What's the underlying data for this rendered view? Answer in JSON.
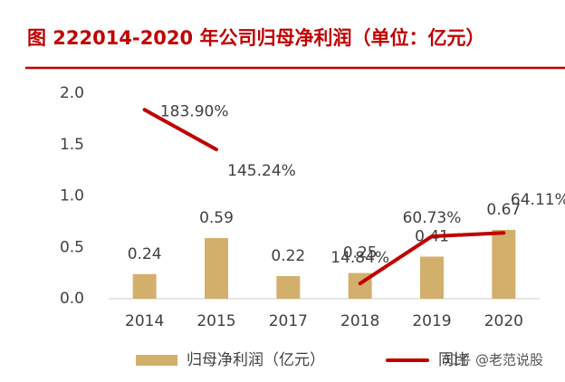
{
  "chart_data": {
    "type": "bar-line",
    "title": "图 222014-2020 年公司归母净利润（单位：亿元）",
    "categories": [
      "2014",
      "2015",
      "2017",
      "2018",
      "2019",
      "2020"
    ],
    "series": [
      {
        "name": "归母净利润（亿元）",
        "type": "bar",
        "color": "#d2b06c",
        "values": [
          0.24,
          0.59,
          0.22,
          0.25,
          0.41,
          0.67
        ]
      },
      {
        "name": "同比",
        "type": "line",
        "color": "#c00000",
        "values": [
          1.839,
          1.4524,
          null,
          0.1484,
          0.6073,
          0.6411
        ],
        "value_labels": [
          "183.90%",
          "145.24%",
          null,
          "14.84%",
          "60.73%",
          "64.11%"
        ]
      }
    ],
    "ylim": [
      0,
      2
    ],
    "yticks": [
      {
        "value": 0,
        "label": "0.0"
      },
      {
        "value": 0.5,
        "label": "0.5"
      },
      {
        "value": 1,
        "label": "1.0"
      },
      {
        "value": 1.5,
        "label": "1.5"
      },
      {
        "value": 2,
        "label": "2.0"
      }
    ],
    "legend": "bottom",
    "watermark": "知乎 @老范说股"
  }
}
